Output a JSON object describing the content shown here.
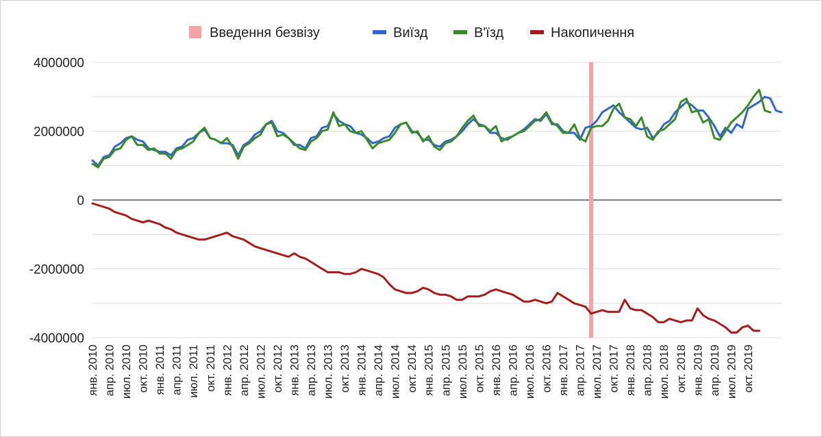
{
  "chart_data": {
    "type": "line",
    "legend_position": "top",
    "grid": true,
    "ylim": [
      -4000000,
      4000000
    ],
    "y_ticks": [
      4000000,
      2000000,
      0,
      -2000000,
      -4000000
    ],
    "y_tick_labels": [
      "4000000",
      "2000000",
      "0",
      "-2000000",
      "-4000000"
    ],
    "x_tick_labels": [
      "янв. 2010",
      "апр. 2010",
      "июл. 2010",
      "окт. 2010",
      "янв. 2011",
      "апр. 2011",
      "июл. 2011",
      "окт. 2011",
      "янв. 2012",
      "апр. 2012",
      "июл. 2012",
      "окт. 2012",
      "янв. 2013",
      "апр. 2013",
      "июл. 2013",
      "окт. 2013",
      "янв. 2014",
      "апр. 2014",
      "июл. 2014",
      "окт. 2014",
      "янв. 2015",
      "апр. 2015",
      "июл. 2015",
      "окт. 2015",
      "янв. 2016",
      "апр. 2016",
      "июл. 2016",
      "окт. 2016",
      "янв. 2017",
      "апр. 2017",
      "июл. 2017",
      "окт. 2017",
      "янв. 2018",
      "апр. 2018",
      "июл. 2018",
      "окт. 2018",
      "янв. 2019",
      "апр. 2019",
      "июл. 2019",
      "окт. 2019"
    ],
    "event_line": {
      "name": "Введення безвізу",
      "month_index": 89,
      "color": "#f4a3a6"
    },
    "series": [
      {
        "name": "Виїзд",
        "color": "#3366cc",
        "values": [
          1150000,
          1000000,
          1250000,
          1300000,
          1550000,
          1650000,
          1800000,
          1850000,
          1750000,
          1700000,
          1500000,
          1450000,
          1400000,
          1400000,
          1300000,
          1500000,
          1550000,
          1750000,
          1800000,
          1950000,
          2050000,
          1800000,
          1750000,
          1650000,
          1650000,
          1600000,
          1300000,
          1600000,
          1700000,
          1900000,
          2000000,
          2200000,
          2300000,
          2000000,
          1950000,
          1800000,
          1600000,
          1600000,
          1500000,
          1800000,
          1850000,
          2100000,
          2150000,
          2500000,
          2300000,
          2200000,
          2150000,
          1950000,
          1900000,
          1800000,
          1650000,
          1700000,
          1800000,
          1850000,
          2100000,
          2200000,
          2250000,
          2000000,
          1950000,
          1750000,
          1750000,
          1600000,
          1550000,
          1700000,
          1750000,
          1850000,
          2000000,
          2200000,
          2350000,
          2200000,
          2150000,
          1950000,
          1950000,
          1800000,
          1750000,
          1850000,
          1950000,
          2050000,
          2200000,
          2350000,
          2300000,
          2500000,
          2200000,
          2200000,
          2000000,
          1950000,
          1950000,
          1750000,
          2100000,
          2150000,
          2300000,
          2550000,
          2650000,
          2750000,
          2550000,
          2400000,
          2250000,
          2100000,
          2050000,
          2100000,
          1800000,
          1950000,
          2200000,
          2300000,
          2550000,
          2700000,
          2850000,
          2750000,
          2600000,
          2600000,
          2400000,
          2150000,
          1850000,
          2100000,
          1950000,
          2200000,
          2100000,
          2650000,
          2750000,
          2850000,
          3000000,
          2950000,
          2600000,
          2550000
        ]
      },
      {
        "name": "В'їзд",
        "color": "#3a8a2a",
        "values": [
          1050000,
          950000,
          1200000,
          1250000,
          1450000,
          1500000,
          1750000,
          1850000,
          1600000,
          1600000,
          1450000,
          1500000,
          1350000,
          1350000,
          1200000,
          1450000,
          1500000,
          1600000,
          1700000,
          1950000,
          2100000,
          1800000,
          1750000,
          1650000,
          1800000,
          1550000,
          1200000,
          1550000,
          1650000,
          1800000,
          1900000,
          2200000,
          2250000,
          1850000,
          1900000,
          1800000,
          1650000,
          1500000,
          1450000,
          1700000,
          1800000,
          2000000,
          2050000,
          2550000,
          2150000,
          2200000,
          2000000,
          1950000,
          2000000,
          1750000,
          1500000,
          1650000,
          1700000,
          1750000,
          1950000,
          2200000,
          2250000,
          1950000,
          2000000,
          1700000,
          1850000,
          1550000,
          1450000,
          1650000,
          1700000,
          1850000,
          2100000,
          2300000,
          2450000,
          2150000,
          2150000,
          2000000,
          2150000,
          1700000,
          1800000,
          1850000,
          1950000,
          2000000,
          2150000,
          2300000,
          2350000,
          2550000,
          2250000,
          2150000,
          1950000,
          1950000,
          2200000,
          1800000,
          1700000,
          2100000,
          2150000,
          2150000,
          2300000,
          2650000,
          2800000,
          2400000,
          2350000,
          2150000,
          2400000,
          1850000,
          1750000,
          2000000,
          2050000,
          2200000,
          2350000,
          2850000,
          2950000,
          2550000,
          2600000,
          2250000,
          2350000,
          1800000,
          1750000,
          2000000,
          2250000,
          2400000,
          2550000,
          2750000,
          3000000,
          3200000,
          2600000,
          2550000
        ]
      },
      {
        "name": "Накопичення",
        "color": "#a31d1d",
        "values": [
          -100000,
          -150000,
          -200000,
          -250000,
          -350000,
          -400000,
          -450000,
          -550000,
          -600000,
          -650000,
          -600000,
          -650000,
          -700000,
          -800000,
          -850000,
          -950000,
          -1000000,
          -1050000,
          -1100000,
          -1150000,
          -1150000,
          -1100000,
          -1050000,
          -1000000,
          -950000,
          -1050000,
          -1100000,
          -1150000,
          -1250000,
          -1350000,
          -1400000,
          -1450000,
          -1500000,
          -1550000,
          -1600000,
          -1650000,
          -1550000,
          -1650000,
          -1700000,
          -1800000,
          -1900000,
          -2000000,
          -2100000,
          -2100000,
          -2100000,
          -2150000,
          -2150000,
          -2100000,
          -2000000,
          -2050000,
          -2100000,
          -2150000,
          -2250000,
          -2450000,
          -2600000,
          -2650000,
          -2700000,
          -2700000,
          -2650000,
          -2550000,
          -2600000,
          -2700000,
          -2750000,
          -2750000,
          -2800000,
          -2900000,
          -2900000,
          -2800000,
          -2800000,
          -2800000,
          -2750000,
          -2650000,
          -2600000,
          -2650000,
          -2700000,
          -2750000,
          -2850000,
          -2950000,
          -2950000,
          -2900000,
          -2950000,
          -3000000,
          -2950000,
          -2700000,
          -2800000,
          -2900000,
          -3000000,
          -3050000,
          -3100000,
          -3300000,
          -3250000,
          -3200000,
          -3250000,
          -3250000,
          -3250000,
          -2900000,
          -3150000,
          -3200000,
          -3200000,
          -3300000,
          -3400000,
          -3550000,
          -3550000,
          -3450000,
          -3500000,
          -3550000,
          -3500000,
          -3500000,
          -3150000,
          -3350000,
          -3450000,
          -3500000,
          -3600000,
          -3700000,
          -3850000,
          -3850000,
          -3700000,
          -3650000,
          -3800000,
          -3800000
        ]
      }
    ]
  }
}
